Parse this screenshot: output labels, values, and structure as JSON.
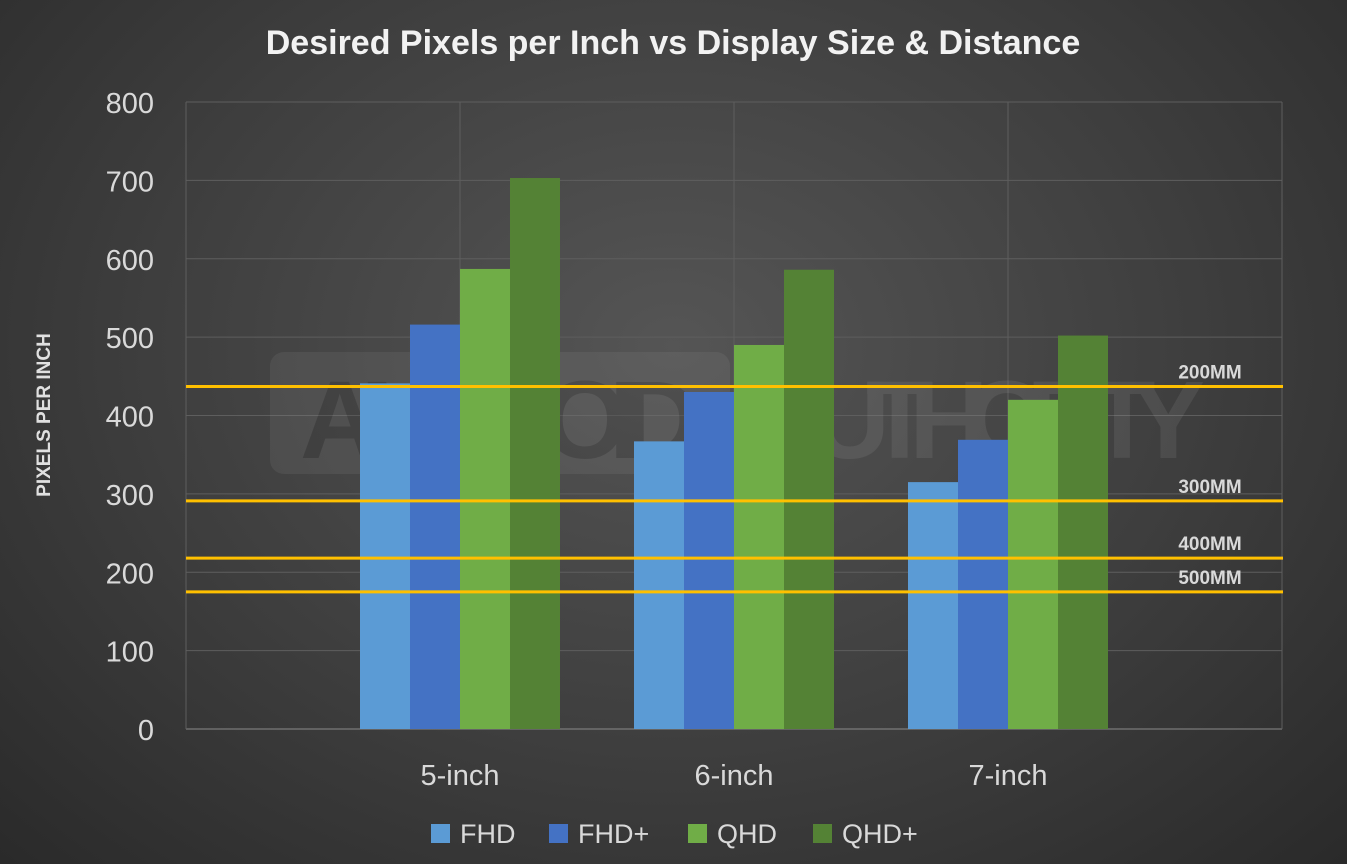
{
  "chart_data": {
    "type": "bar",
    "title": "Desired Pixels per Inch vs Display Size & Distance",
    "xlabel": "",
    "ylabel": "PIXELS PER INCH",
    "ylim": [
      0,
      800
    ],
    "yticks": [
      "0",
      "100",
      "200",
      "300",
      "400",
      "500",
      "600",
      "700",
      "800"
    ],
    "grid": true,
    "legend_position": "bottom",
    "categories": [
      "5-inch",
      "6-inch",
      "7-inch"
    ],
    "series": [
      {
        "name": "FHD",
        "values": [
          441,
          367,
          315
        ],
        "color": "#5b9bd5"
      },
      {
        "name": "FHD+",
        "values": [
          516,
          430,
          369
        ],
        "color": "#4472c4"
      },
      {
        "name": "QHD",
        "values": [
          587,
          490,
          420
        ],
        "color": "#70ad47"
      },
      {
        "name": "QHD+",
        "values": [
          703,
          586,
          502
        ],
        "color": "#548235"
      }
    ],
    "reference_lines": [
      {
        "label": "200MM",
        "value": 437
      },
      {
        "label": "300MM",
        "value": 291
      },
      {
        "label": "400MM",
        "value": 218
      },
      {
        "label": "500MM",
        "value": 175
      }
    ],
    "reference_line_color": "#ffc000",
    "watermark": "ANDROID AUTHORITY"
  }
}
